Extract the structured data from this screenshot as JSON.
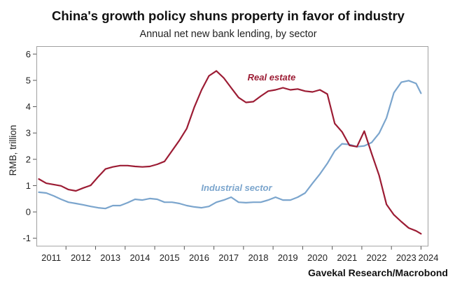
{
  "chart_data": {
    "type": "line",
    "title": "China's growth policy shuns property in favor of industry",
    "subtitle": "Annual net new bank lending, by sector",
    "ylabel": "RMB, trillion",
    "xlim": [
      "2011-01",
      "2024-04"
    ],
    "ylim": [
      -1.3,
      6.3
    ],
    "x_ticks": [
      "2011",
      "2012",
      "2013",
      "2014",
      "2015",
      "2016",
      "2017",
      "2018",
      "2019",
      "2020",
      "2021",
      "2022",
      "2023",
      "2024"
    ],
    "y_ticks": [
      6,
      5,
      4,
      3,
      2,
      1,
      0,
      -1
    ],
    "grid": false,
    "x": [
      "2011-02",
      "2011-05",
      "2011-08",
      "2011-11",
      "2012-02",
      "2012-05",
      "2012-08",
      "2012-11",
      "2013-02",
      "2013-05",
      "2013-08",
      "2013-11",
      "2014-02",
      "2014-05",
      "2014-08",
      "2014-11",
      "2015-02",
      "2015-05",
      "2015-08",
      "2015-11",
      "2016-02",
      "2016-05",
      "2016-08",
      "2016-11",
      "2017-02",
      "2017-05",
      "2017-08",
      "2017-11",
      "2018-02",
      "2018-05",
      "2018-08",
      "2018-11",
      "2019-02",
      "2019-05",
      "2019-08",
      "2019-11",
      "2020-02",
      "2020-05",
      "2020-08",
      "2020-11",
      "2021-02",
      "2021-05",
      "2021-08",
      "2021-11",
      "2022-02",
      "2022-05",
      "2022-08",
      "2022-11",
      "2023-02",
      "2023-05",
      "2023-08",
      "2023-11",
      "2024-01"
    ],
    "series": [
      {
        "name": "Real estate",
        "color": "#9c1c34",
        "values": [
          1.25,
          1.09,
          1.04,
          0.99,
          0.85,
          0.8,
          0.91,
          1.01,
          1.33,
          1.63,
          1.71,
          1.76,
          1.76,
          1.73,
          1.71,
          1.73,
          1.81,
          1.92,
          2.32,
          2.72,
          3.17,
          3.97,
          4.64,
          5.17,
          5.36,
          5.09,
          4.72,
          4.35,
          4.16,
          4.19,
          4.4,
          4.59,
          4.64,
          4.72,
          4.64,
          4.67,
          4.59,
          4.56,
          4.64,
          4.48,
          3.36,
          3.04,
          2.53,
          2.48,
          3.07,
          2.21,
          1.39,
          0.29,
          -0.11,
          -0.37,
          -0.61,
          -0.72,
          -0.83
        ]
      },
      {
        "name": "Industrial sector",
        "color": "#7ba5cd",
        "values": [
          0.75,
          0.72,
          0.61,
          0.48,
          0.37,
          0.32,
          0.27,
          0.21,
          0.16,
          0.13,
          0.24,
          0.24,
          0.35,
          0.48,
          0.45,
          0.51,
          0.48,
          0.37,
          0.37,
          0.32,
          0.24,
          0.19,
          0.16,
          0.21,
          0.37,
          0.45,
          0.56,
          0.37,
          0.35,
          0.37,
          0.37,
          0.45,
          0.56,
          0.45,
          0.45,
          0.56,
          0.72,
          1.09,
          1.44,
          1.84,
          2.32,
          2.59,
          2.56,
          2.48,
          2.51,
          2.64,
          2.99,
          3.57,
          4.53,
          4.93,
          4.99,
          4.88,
          4.51
        ]
      }
    ],
    "source": "Gavekal Research/Macrobond"
  }
}
